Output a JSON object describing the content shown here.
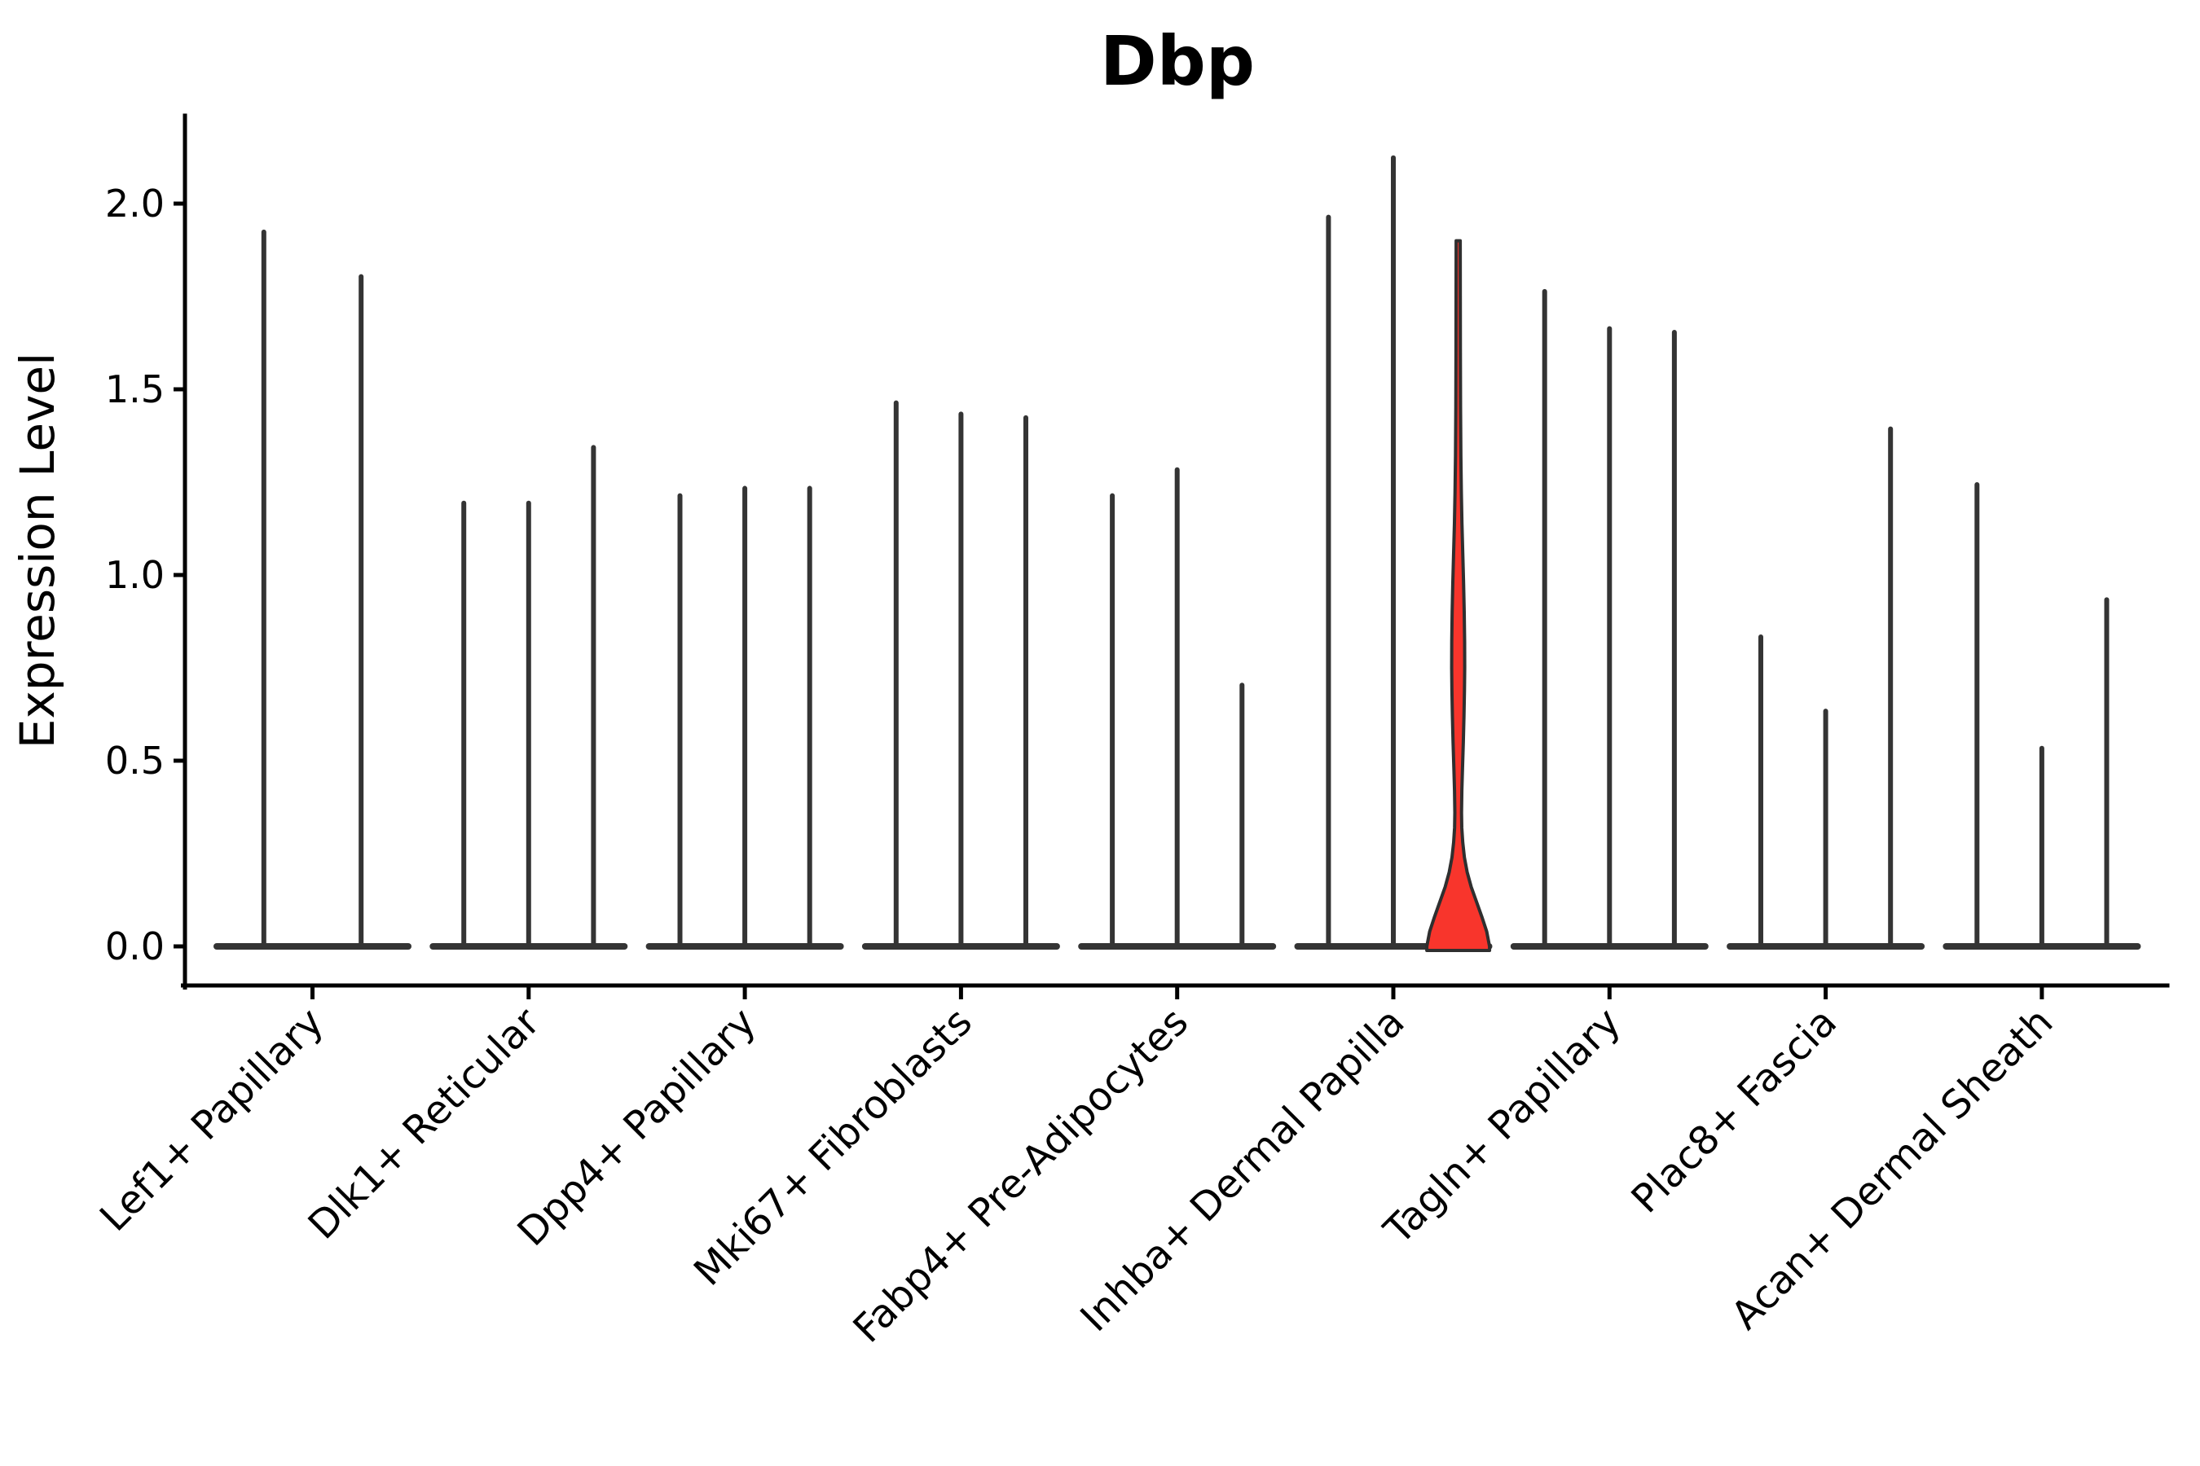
{
  "chart_data": {
    "type": "violin",
    "title": "Dbp",
    "ylabel": "Expression Level",
    "xlabel": "",
    "grid": false,
    "legend": "none",
    "ylim": [
      -0.105,
      2.24
    ],
    "y_ticks": [
      0.0,
      0.5,
      1.0,
      1.5,
      2.0
    ],
    "y_tick_labels": [
      "0.0",
      "0.5",
      "1.0",
      "1.5",
      "2.0"
    ],
    "categories": [
      "Lef1+ Papillary",
      "Dlk1+ Reticular",
      "Dpp4+ Papillary",
      "Mki67+ Fibroblasts",
      "Fabp4+ Pre-Adipocytes",
      "Inhba+ Dermal Papilla",
      "Tagln+ Papillary",
      "Plac8+ Fascia",
      "Acan+ Dermal Sheath"
    ],
    "description": "Stacked violin plot of Dbp expression; most violins collapse to a flat base at 0 with a thin spike to their maximum; one violin (Inhba+ Dermal Papilla, 3rd violin) is highlighted red with visible density bulge",
    "groups": [
      {
        "label": "Lef1+ Papillary",
        "violins": [
          {
            "max": 1.93
          },
          {
            "max": 1.81
          }
        ]
      },
      {
        "label": "Dlk1+ Reticular",
        "violins": [
          {
            "max": 1.2
          },
          {
            "max": 1.2
          },
          {
            "max": 1.35
          }
        ]
      },
      {
        "label": "Dpp4+ Papillary",
        "violins": [
          {
            "max": 1.22
          },
          {
            "max": 1.24
          },
          {
            "max": 1.24
          }
        ]
      },
      {
        "label": "Mki67+ Fibroblasts",
        "violins": [
          {
            "max": 1.47
          },
          {
            "max": 1.44
          },
          {
            "max": 1.43
          }
        ]
      },
      {
        "label": "Fabp4+ Pre-Adipocytes",
        "violins": [
          {
            "max": 1.22
          },
          {
            "max": 1.29
          },
          {
            "max": 0.71
          }
        ]
      },
      {
        "label": "Inhba+ Dermal Papilla",
        "violins": [
          {
            "max": 1.97
          },
          {
            "max": 2.13
          },
          {
            "max": 1.9,
            "highlight": true
          }
        ]
      },
      {
        "label": "Tagln+ Papillary",
        "violins": [
          {
            "max": 1.77
          },
          {
            "max": 1.67
          },
          {
            "max": 1.66
          }
        ]
      },
      {
        "label": "Plac8+ Fascia",
        "violins": [
          {
            "max": 0.84
          },
          {
            "max": 0.64
          },
          {
            "max": 1.4
          }
        ]
      },
      {
        "label": "Acan+ Dermal Sheath",
        "violins": [
          {
            "max": 1.25
          },
          {
            "max": 0.54
          },
          {
            "max": 0.94
          }
        ]
      }
    ],
    "highlight_profile": [
      [
        0.0,
        38.5
      ],
      [
        0.04,
        35.0
      ],
      [
        0.08,
        29.0
      ],
      [
        0.12,
        22.5
      ],
      [
        0.16,
        16.0
      ],
      [
        0.2,
        11.0
      ],
      [
        0.24,
        7.6
      ],
      [
        0.28,
        5.6
      ],
      [
        0.32,
        4.4
      ],
      [
        0.36,
        4.1
      ],
      [
        0.42,
        4.5
      ],
      [
        0.48,
        5.3
      ],
      [
        0.55,
        6.3
      ],
      [
        0.62,
        7.1
      ],
      [
        0.69,
        7.7
      ],
      [
        0.75,
        8.0
      ],
      [
        0.82,
        7.9
      ],
      [
        0.9,
        7.4
      ],
      [
        0.98,
        6.6
      ],
      [
        1.06,
        5.6
      ],
      [
        1.14,
        4.6
      ],
      [
        1.22,
        3.9
      ],
      [
        1.32,
        3.3
      ],
      [
        1.45,
        2.9
      ],
      [
        1.6,
        2.7
      ],
      [
        1.75,
        2.6
      ],
      [
        1.9,
        2.5
      ]
    ],
    "colors": {
      "violin_stroke": "#343434",
      "highlight_fill": "#F8352C",
      "highlight_stroke": "#2F2F2F",
      "axis": "#000000",
      "background": "#FFFFFF"
    }
  }
}
